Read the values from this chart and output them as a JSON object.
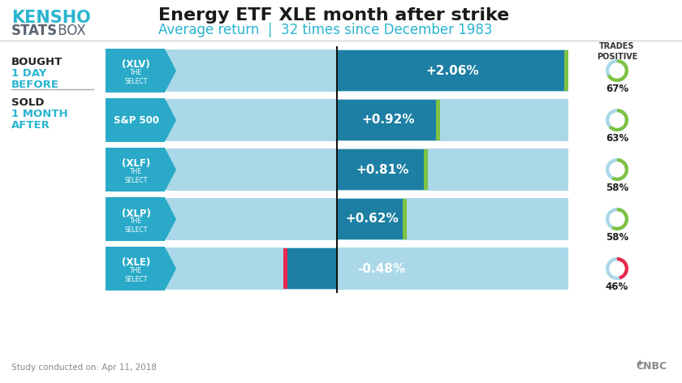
{
  "title1": "Energy ETF XLE month after strike",
  "title2": "Average return  |  32 times since December 1983",
  "bars": [
    {
      "label": "(XLV)",
      "sublabel": "THE\nSELECT",
      "value": 2.06,
      "pct_text": "+2.06%",
      "trades_pct": 67,
      "positive": true
    },
    {
      "label": "S&P 500",
      "sublabel": "",
      "value": 0.92,
      "pct_text": "+0.92%",
      "trades_pct": 63,
      "positive": true
    },
    {
      "label": "(XLF)",
      "sublabel": "THE\nSELECT",
      "value": 0.81,
      "pct_text": "+0.81%",
      "trades_pct": 58,
      "positive": true
    },
    {
      "label": "(XLP)",
      "sublabel": "THE\nSELECT",
      "value": 0.62,
      "pct_text": "+0.62%",
      "trades_pct": 58,
      "positive": true
    },
    {
      "label": "(XLE)",
      "sublabel": "THE\nSELECT",
      "value": -0.48,
      "pct_text": "-0.48%",
      "trades_pct": 46,
      "positive": false
    }
  ],
  "color_teal_dark": "#1d7fa3",
  "color_teal_mid": "#2aaac8",
  "color_teal_light": "#aad8e8",
  "color_green": "#7dc243",
  "color_red": "#e8294c",
  "color_kensho_blue": "#2ab4d0",
  "color_kensho_gray": "#5a6470",
  "footer": "Study conducted on: Apr 11, 2018",
  "max_val": 2.06,
  "min_val": -0.48,
  "trades_pos_label": "TRADES\nPOSITIVE"
}
